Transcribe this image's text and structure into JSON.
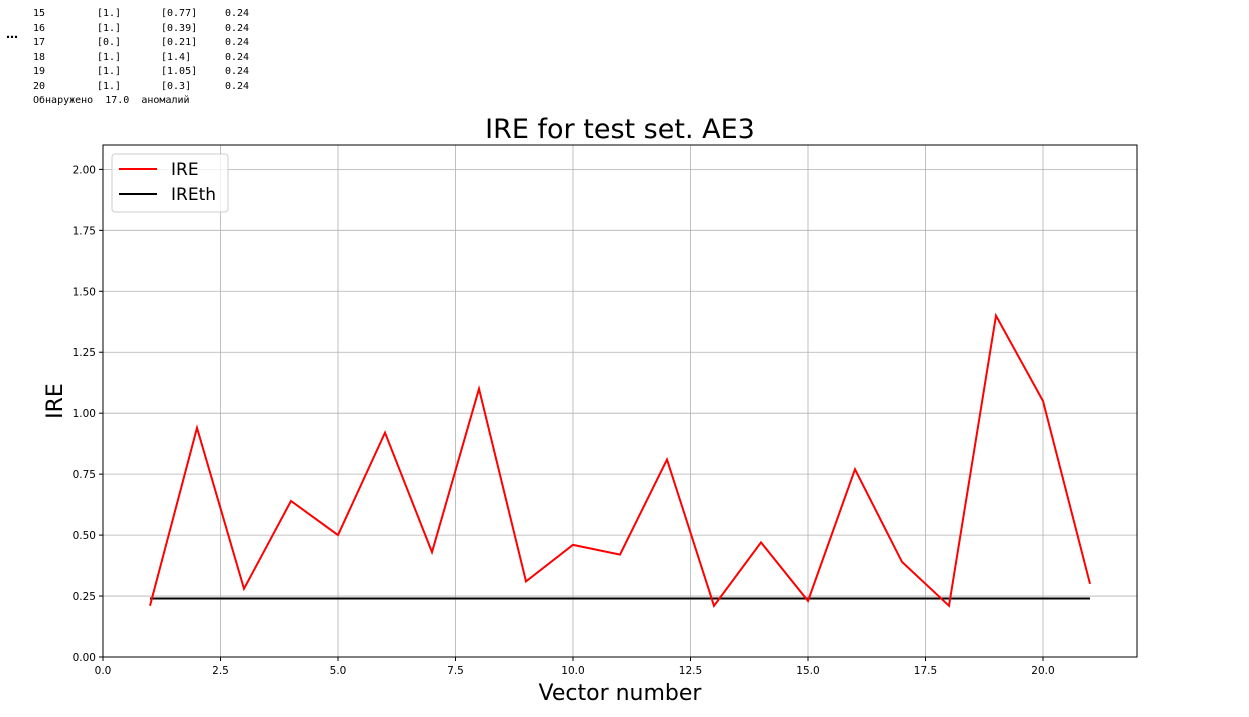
{
  "output": {
    "ellipsis": "⋯",
    "rows": [
      [
        "15",
        "[1.]",
        "[0.77]",
        "0.24"
      ],
      [
        "16",
        "[1.]",
        "[0.39]",
        "0.24"
      ],
      [
        "17",
        "[0.]",
        "[0.21]",
        "0.24"
      ],
      [
        "18",
        "[1.]",
        "[1.4]",
        "0.24"
      ],
      [
        "19",
        "[1.]",
        "[1.05]",
        "0.24"
      ],
      [
        "20",
        "[1.]",
        "[0.3]",
        "0.24"
      ]
    ],
    "summary": "Обнаружено  17.0  аномалий"
  },
  "chart_data": {
    "type": "line",
    "title": "IRE for test set. AE3",
    "xlabel": "Vector number",
    "ylabel": "IRE",
    "xlim": [
      0,
      22
    ],
    "ylim": [
      0,
      2.1
    ],
    "xticks": [
      "0.0",
      "2.5",
      "5.0",
      "7.5",
      "10.0",
      "12.5",
      "15.0",
      "17.5",
      "20.0"
    ],
    "yticks": [
      "0.00",
      "0.25",
      "0.50",
      "0.75",
      "1.00",
      "1.25",
      "1.50",
      "1.75",
      "2.00"
    ],
    "grid": true,
    "legend": "top-left",
    "x": [
      1,
      2,
      3,
      4,
      5,
      6,
      7,
      8,
      9,
      10,
      11,
      12,
      13,
      14,
      15,
      16,
      17,
      18,
      19,
      20,
      21
    ],
    "series": [
      {
        "name": "IRE",
        "color": "#ff0000",
        "values": [
          0.21,
          0.94,
          0.28,
          0.64,
          0.5,
          0.92,
          0.43,
          1.1,
          0.31,
          0.46,
          0.42,
          0.81,
          0.21,
          0.47,
          0.23,
          0.77,
          0.39,
          0.21,
          1.4,
          1.05,
          0.3
        ]
      },
      {
        "name": "IREth",
        "color": "#000000",
        "values": [
          0.24,
          0.24,
          0.24,
          0.24,
          0.24,
          0.24,
          0.24,
          0.24,
          0.24,
          0.24,
          0.24,
          0.24,
          0.24,
          0.24,
          0.24,
          0.24,
          0.24,
          0.24,
          0.24,
          0.24,
          0.24
        ]
      }
    ]
  }
}
